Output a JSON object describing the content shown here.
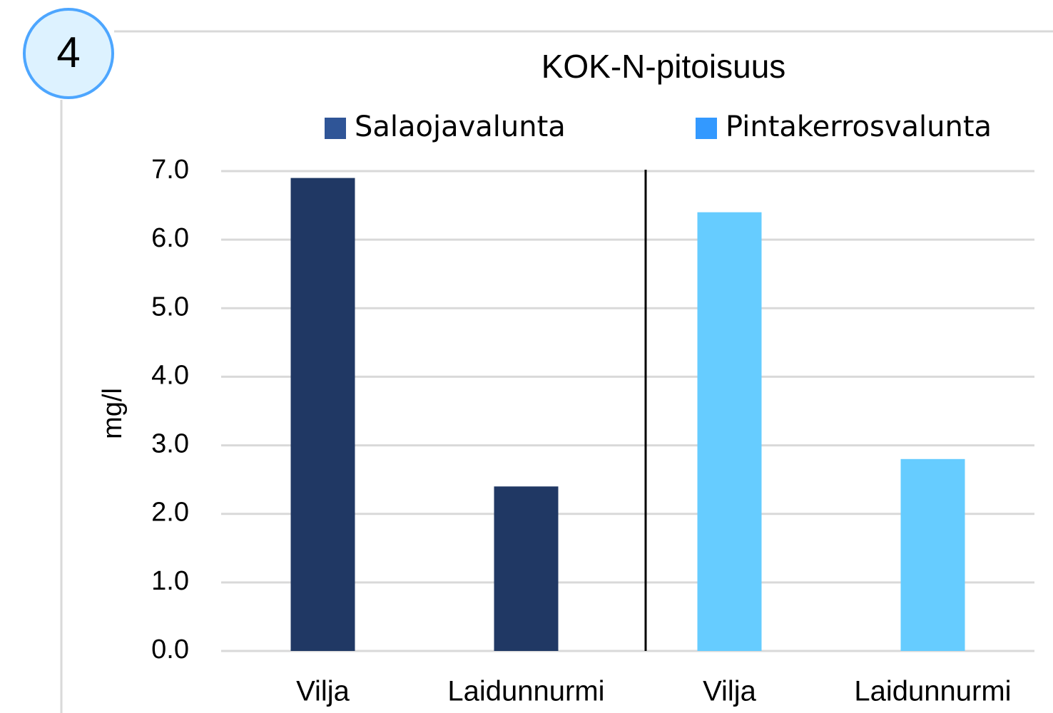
{
  "badge": "4",
  "chart_data": {
    "type": "bar",
    "title": "KOK-N-pitoisuus",
    "y_label": "mg/l",
    "categories": [
      "Vilja",
      "Laidunnurmi",
      "Vilja",
      "Laidunnurmi"
    ],
    "series": [
      {
        "name": "Salaojavalunta",
        "color": "#203864",
        "legend_color": "#2f5597",
        "values": [
          6.9,
          2.4,
          null,
          null
        ]
      },
      {
        "name": "Pintakerrosvalunta",
        "color": "#66ccff",
        "legend_color": "#3399ff",
        "values": [
          null,
          null,
          6.4,
          2.8
        ]
      }
    ],
    "ylim": [
      0,
      7
    ],
    "yticks": [
      {
        "value": 0,
        "label": "0.0"
      },
      {
        "value": 1,
        "label": "1.0"
      },
      {
        "value": 2,
        "label": "2.0"
      },
      {
        "value": 3,
        "label": "3.0"
      },
      {
        "value": 4,
        "label": "4.0"
      },
      {
        "value": 5,
        "label": "5.0"
      },
      {
        "value": 6,
        "label": "6.0"
      },
      {
        "value": 7,
        "label": "7.0"
      }
    ],
    "grid": true,
    "legend": "top"
  }
}
